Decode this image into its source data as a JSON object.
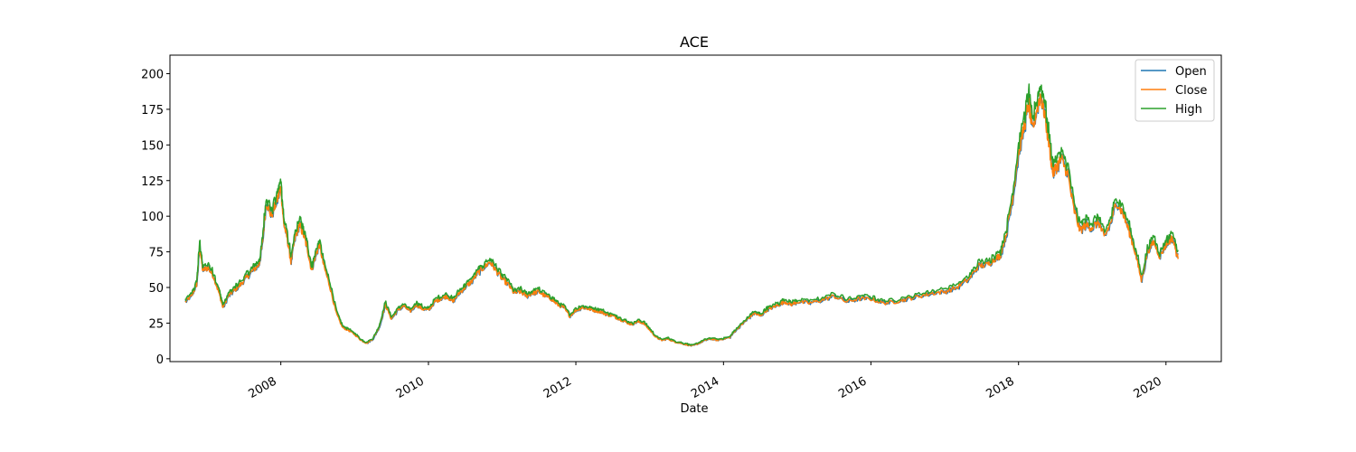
{
  "chart_data": {
    "type": "line",
    "title": "ACE",
    "xlabel": "Date",
    "ylabel": "",
    "x_axis_type": "date",
    "xlim": [
      "2006-07-01",
      "2020-10-01"
    ],
    "ylim": [
      -2,
      213
    ],
    "x_ticks": [
      "2008",
      "2010",
      "2012",
      "2014",
      "2016",
      "2018",
      "2020"
    ],
    "y_ticks": [
      0,
      25,
      50,
      75,
      100,
      125,
      150,
      175,
      200
    ],
    "legend_position": "upper right",
    "grid": false,
    "series": [
      {
        "name": "Open",
        "color": "#1f77b4"
      },
      {
        "name": "Close",
        "color": "#ff7f0e"
      },
      {
        "name": "High",
        "color": "#2ca02c"
      }
    ],
    "close_points": [
      [
        "2006-09-15",
        40
      ],
      [
        "2006-10-15",
        44
      ],
      [
        "2006-11-10",
        52
      ],
      [
        "2006-11-25",
        79
      ],
      [
        "2006-12-10",
        62
      ],
      [
        "2007-01-05",
        64
      ],
      [
        "2007-02-01",
        58
      ],
      [
        "2007-03-01",
        46
      ],
      [
        "2007-03-20",
        36
      ],
      [
        "2007-04-15",
        44
      ],
      [
        "2007-05-15",
        48
      ],
      [
        "2007-06-15",
        52
      ],
      [
        "2007-07-15",
        57
      ],
      [
        "2007-08-15",
        62
      ],
      [
        "2007-09-15",
        66
      ],
      [
        "2007-10-01",
        80
      ],
      [
        "2007-10-20",
        110
      ],
      [
        "2007-11-15",
        100
      ],
      [
        "2007-12-15",
        112
      ],
      [
        "2008-01-01",
        120
      ],
      [
        "2008-01-15",
        95
      ],
      [
        "2008-02-01",
        85
      ],
      [
        "2008-02-20",
        68
      ],
      [
        "2008-03-10",
        84
      ],
      [
        "2008-04-01",
        94
      ],
      [
        "2008-04-20",
        88
      ],
      [
        "2008-05-10",
        78
      ],
      [
        "2008-06-01",
        62
      ],
      [
        "2008-06-20",
        72
      ],
      [
        "2008-07-10",
        80
      ],
      [
        "2008-08-01",
        65
      ],
      [
        "2008-09-01",
        50
      ],
      [
        "2008-10-01",
        32
      ],
      [
        "2008-11-01",
        22
      ],
      [
        "2008-12-01",
        20
      ],
      [
        "2009-01-01",
        17
      ],
      [
        "2009-02-01",
        13
      ],
      [
        "2009-03-01",
        11
      ],
      [
        "2009-04-01",
        14
      ],
      [
        "2009-05-01",
        22
      ],
      [
        "2009-06-01",
        38
      ],
      [
        "2009-07-01",
        28
      ],
      [
        "2009-08-01",
        34
      ],
      [
        "2009-09-01",
        37
      ],
      [
        "2009-10-01",
        33
      ],
      [
        "2009-11-01",
        38
      ],
      [
        "2009-12-01",
        35
      ],
      [
        "2010-01-01",
        34
      ],
      [
        "2010-02-01",
        40
      ],
      [
        "2010-03-01",
        42
      ],
      [
        "2010-04-01",
        44
      ],
      [
        "2010-05-01",
        40
      ],
      [
        "2010-06-01",
        46
      ],
      [
        "2010-07-01",
        50
      ],
      [
        "2010-08-01",
        54
      ],
      [
        "2010-09-01",
        60
      ],
      [
        "2010-10-01",
        64
      ],
      [
        "2010-11-01",
        68
      ],
      [
        "2010-12-01",
        62
      ],
      [
        "2011-01-01",
        56
      ],
      [
        "2011-02-01",
        52
      ],
      [
        "2011-03-01",
        46
      ],
      [
        "2011-04-01",
        47
      ],
      [
        "2011-05-01",
        44
      ],
      [
        "2011-06-01",
        46
      ],
      [
        "2011-07-01",
        47
      ],
      [
        "2011-08-01",
        44
      ],
      [
        "2011-09-01",
        42
      ],
      [
        "2011-10-01",
        38
      ],
      [
        "2011-11-01",
        36
      ],
      [
        "2011-12-01",
        30
      ],
      [
        "2012-01-01",
        34
      ],
      [
        "2012-02-01",
        36
      ],
      [
        "2012-03-01",
        35
      ],
      [
        "2012-04-01",
        34
      ],
      [
        "2012-05-01",
        33
      ],
      [
        "2012-06-01",
        31
      ],
      [
        "2012-07-01",
        30
      ],
      [
        "2012-08-01",
        28
      ],
      [
        "2012-09-01",
        26
      ],
      [
        "2012-10-01",
        24
      ],
      [
        "2012-11-01",
        26
      ],
      [
        "2012-12-01",
        25
      ],
      [
        "2013-01-01",
        20
      ],
      [
        "2013-02-01",
        15
      ],
      [
        "2013-03-01",
        13
      ],
      [
        "2013-04-01",
        14
      ],
      [
        "2013-05-01",
        12
      ],
      [
        "2013-06-01",
        11
      ],
      [
        "2013-07-01",
        10
      ],
      [
        "2013-08-01",
        9
      ],
      [
        "2013-09-01",
        11
      ],
      [
        "2013-10-01",
        13
      ],
      [
        "2013-11-01",
        14
      ],
      [
        "2013-12-01",
        13
      ],
      [
        "2014-01-01",
        14
      ],
      [
        "2014-02-01",
        15
      ],
      [
        "2014-03-01",
        20
      ],
      [
        "2014-04-01",
        24
      ],
      [
        "2014-05-01",
        28
      ],
      [
        "2014-06-01",
        32
      ],
      [
        "2014-07-01",
        30
      ],
      [
        "2014-08-01",
        34
      ],
      [
        "2014-09-01",
        36
      ],
      [
        "2014-10-01",
        38
      ],
      [
        "2014-11-01",
        40
      ],
      [
        "2014-12-01",
        38
      ],
      [
        "2015-01-01",
        40
      ],
      [
        "2015-03-01",
        39
      ],
      [
        "2015-05-01",
        41
      ],
      [
        "2015-07-01",
        44
      ],
      [
        "2015-09-01",
        40
      ],
      [
        "2015-11-01",
        42
      ],
      [
        "2016-01-01",
        42
      ],
      [
        "2016-03-01",
        39
      ],
      [
        "2016-05-01",
        40
      ],
      [
        "2016-07-01",
        42
      ],
      [
        "2016-09-01",
        44
      ],
      [
        "2016-11-01",
        46
      ],
      [
        "2017-01-01",
        47
      ],
      [
        "2017-03-01",
        50
      ],
      [
        "2017-05-01",
        56
      ],
      [
        "2017-06-15",
        65
      ],
      [
        "2017-08-01",
        66
      ],
      [
        "2017-09-01",
        70
      ],
      [
        "2017-10-01",
        72
      ],
      [
        "2017-11-01",
        88
      ],
      [
        "2017-12-01",
        112
      ],
      [
        "2018-01-01",
        145
      ],
      [
        "2018-02-01",
        165
      ],
      [
        "2018-02-20",
        180
      ],
      [
        "2018-03-10",
        160
      ],
      [
        "2018-04-01",
        175
      ],
      [
        "2018-04-20",
        185
      ],
      [
        "2018-05-10",
        172
      ],
      [
        "2018-06-01",
        150
      ],
      [
        "2018-06-20",
        130
      ],
      [
        "2018-07-10",
        135
      ],
      [
        "2018-08-01",
        140
      ],
      [
        "2018-09-01",
        130
      ],
      [
        "2018-10-01",
        105
      ],
      [
        "2018-11-01",
        90
      ],
      [
        "2018-12-01",
        94
      ],
      [
        "2019-01-01",
        92
      ],
      [
        "2019-02-01",
        96
      ],
      [
        "2019-03-01",
        85
      ],
      [
        "2019-04-01",
        95
      ],
      [
        "2019-05-01",
        110
      ],
      [
        "2019-06-01",
        102
      ],
      [
        "2019-07-01",
        90
      ],
      [
        "2019-08-01",
        75
      ],
      [
        "2019-09-01",
        55
      ],
      [
        "2019-10-01",
        75
      ],
      [
        "2019-11-01",
        82
      ],
      [
        "2019-12-01",
        72
      ],
      [
        "2020-01-01",
        80
      ],
      [
        "2020-02-01",
        85
      ],
      [
        "2020-03-01",
        70
      ]
    ]
  }
}
